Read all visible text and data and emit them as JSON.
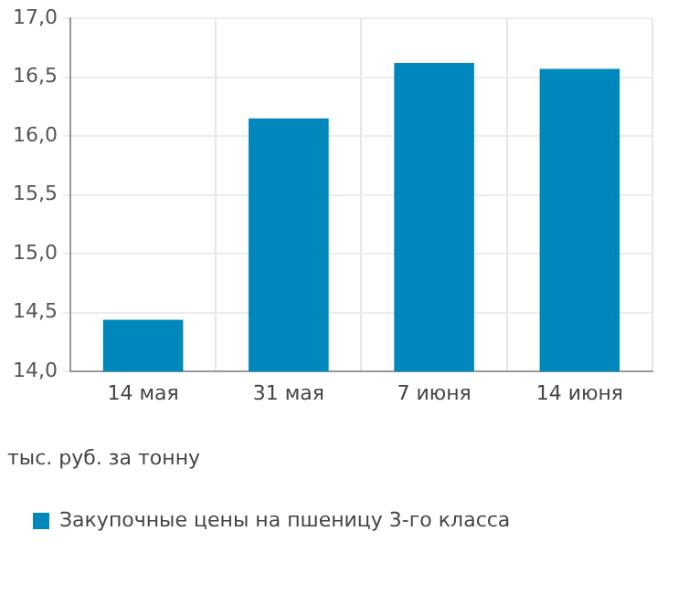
{
  "chart_data": {
    "type": "bar",
    "ylabel": "тыс. руб. за тонну",
    "categories": [
      "14 мая",
      "31 мая",
      "7 июня",
      "14 июня"
    ],
    "series": [
      {
        "name": "Закупочные цены на пшеницу 3-го класса",
        "color": "#0087bb",
        "values": [
          14.44,
          16.15,
          16.62,
          16.57
        ]
      }
    ],
    "ylim": [
      14,
      17
    ],
    "yticks": [
      {
        "value": 14,
        "label": "14,0"
      },
      {
        "value": 14.5,
        "label": "14,5"
      },
      {
        "value": 15,
        "label": "15,0"
      },
      {
        "value": 15.5,
        "label": "15,5"
      },
      {
        "value": 16,
        "label": "16,0"
      },
      {
        "value": 16.5,
        "label": "16,5"
      },
      {
        "value": 17,
        "label": "17,0"
      }
    ],
    "grid": true,
    "legend": "bottom left"
  }
}
